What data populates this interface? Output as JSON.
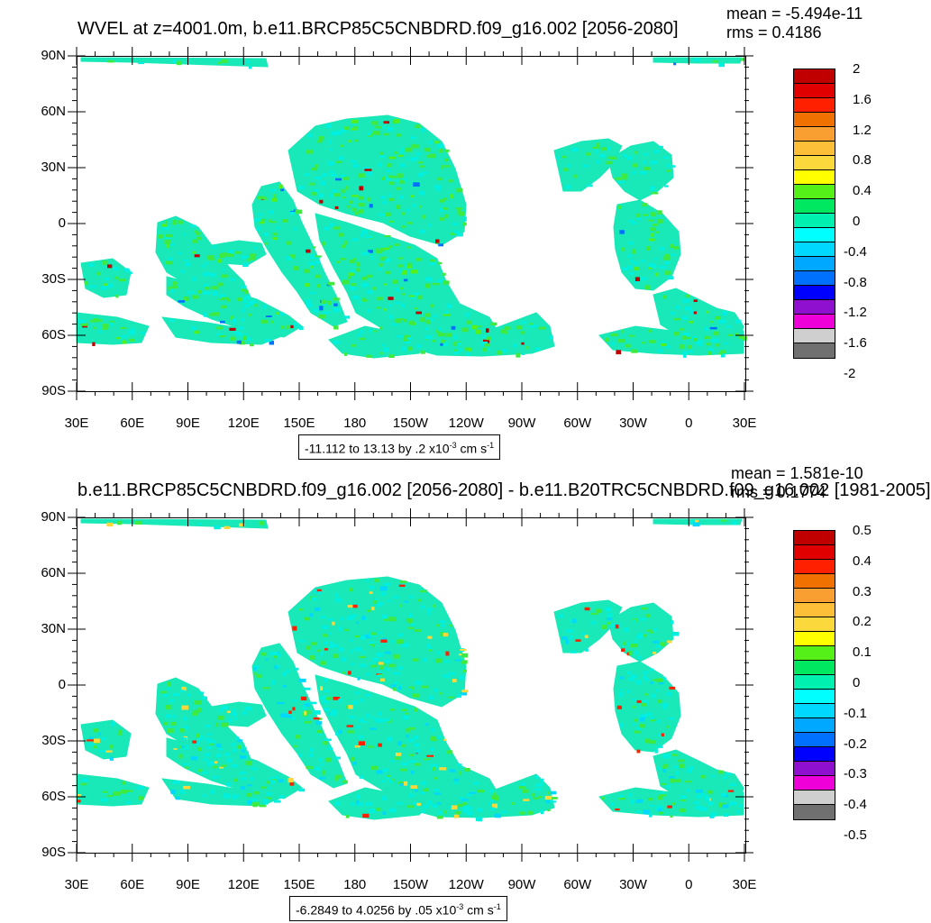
{
  "panels": [
    {
      "title": "WVEL at z=4001.0m, b.e11.BRCP85C5CNBDRD.f09_g16.002 [2056-2080]",
      "mean_label": "mean = -5.494e-11",
      "rms_label": "rms = 0.4186",
      "range_text": "-11.112 to 13.13 by .2 x10",
      "range_exp": "-3",
      "range_units": " cm s",
      "range_units_exp": "-1",
      "colorbar_labels": [
        "2",
        "1.6",
        "1.2",
        "0.8",
        "0.4",
        "0",
        "-0.4",
        "-0.8",
        "-1.2",
        "-1.6",
        "-2"
      ]
    },
    {
      "title": "b.e11.BRCP85C5CNBDRD.f09_g16.002 [2056-2080] - b.e11.B20TRC5CNBDRD.f09_g16.002 [1981-2005]",
      "mean_label": "mean = 1.581e-10",
      "rms_label": "rms = 0.1774",
      "range_text": "-6.2849 to 4.0256 by .05 x10",
      "range_exp": "-3",
      "range_units": " cm s",
      "range_units_exp": "-1",
      "colorbar_labels": [
        "0.5",
        "0.4",
        "0.3",
        "0.2",
        "0.1",
        "0",
        "-0.1",
        "-0.2",
        "-0.3",
        "-0.4",
        "-0.5"
      ]
    }
  ],
  "lat_labels": [
    "90N",
    "60N",
    "30N",
    "0",
    "30S",
    "60S",
    "90S"
  ],
  "lon_labels": [
    "30E",
    "60E",
    "90E",
    "120E",
    "150E",
    "180",
    "150W",
    "120W",
    "90W",
    "60W",
    "30W",
    "0",
    "30E"
  ],
  "colors": {
    "colorbar": [
      "#c00000",
      "#e10000",
      "#ff2000",
      "#f07000",
      "#f99e30",
      "#fdbe38",
      "#fbd83c",
      "#ffff00",
      "#55f018",
      "#00e860",
      "#00f0b0",
      "#00ffff",
      "#00d8ff",
      "#00a8ff",
      "#0070ff",
      "#0000ff",
      "#9010d0",
      "#ee00d8",
      "#cfcfcf",
      "#707070"
    ],
    "ocean_main": "#19e8b8",
    "ocean_light": "#00f0e0",
    "ocean_green": "#3fea40"
  }
}
